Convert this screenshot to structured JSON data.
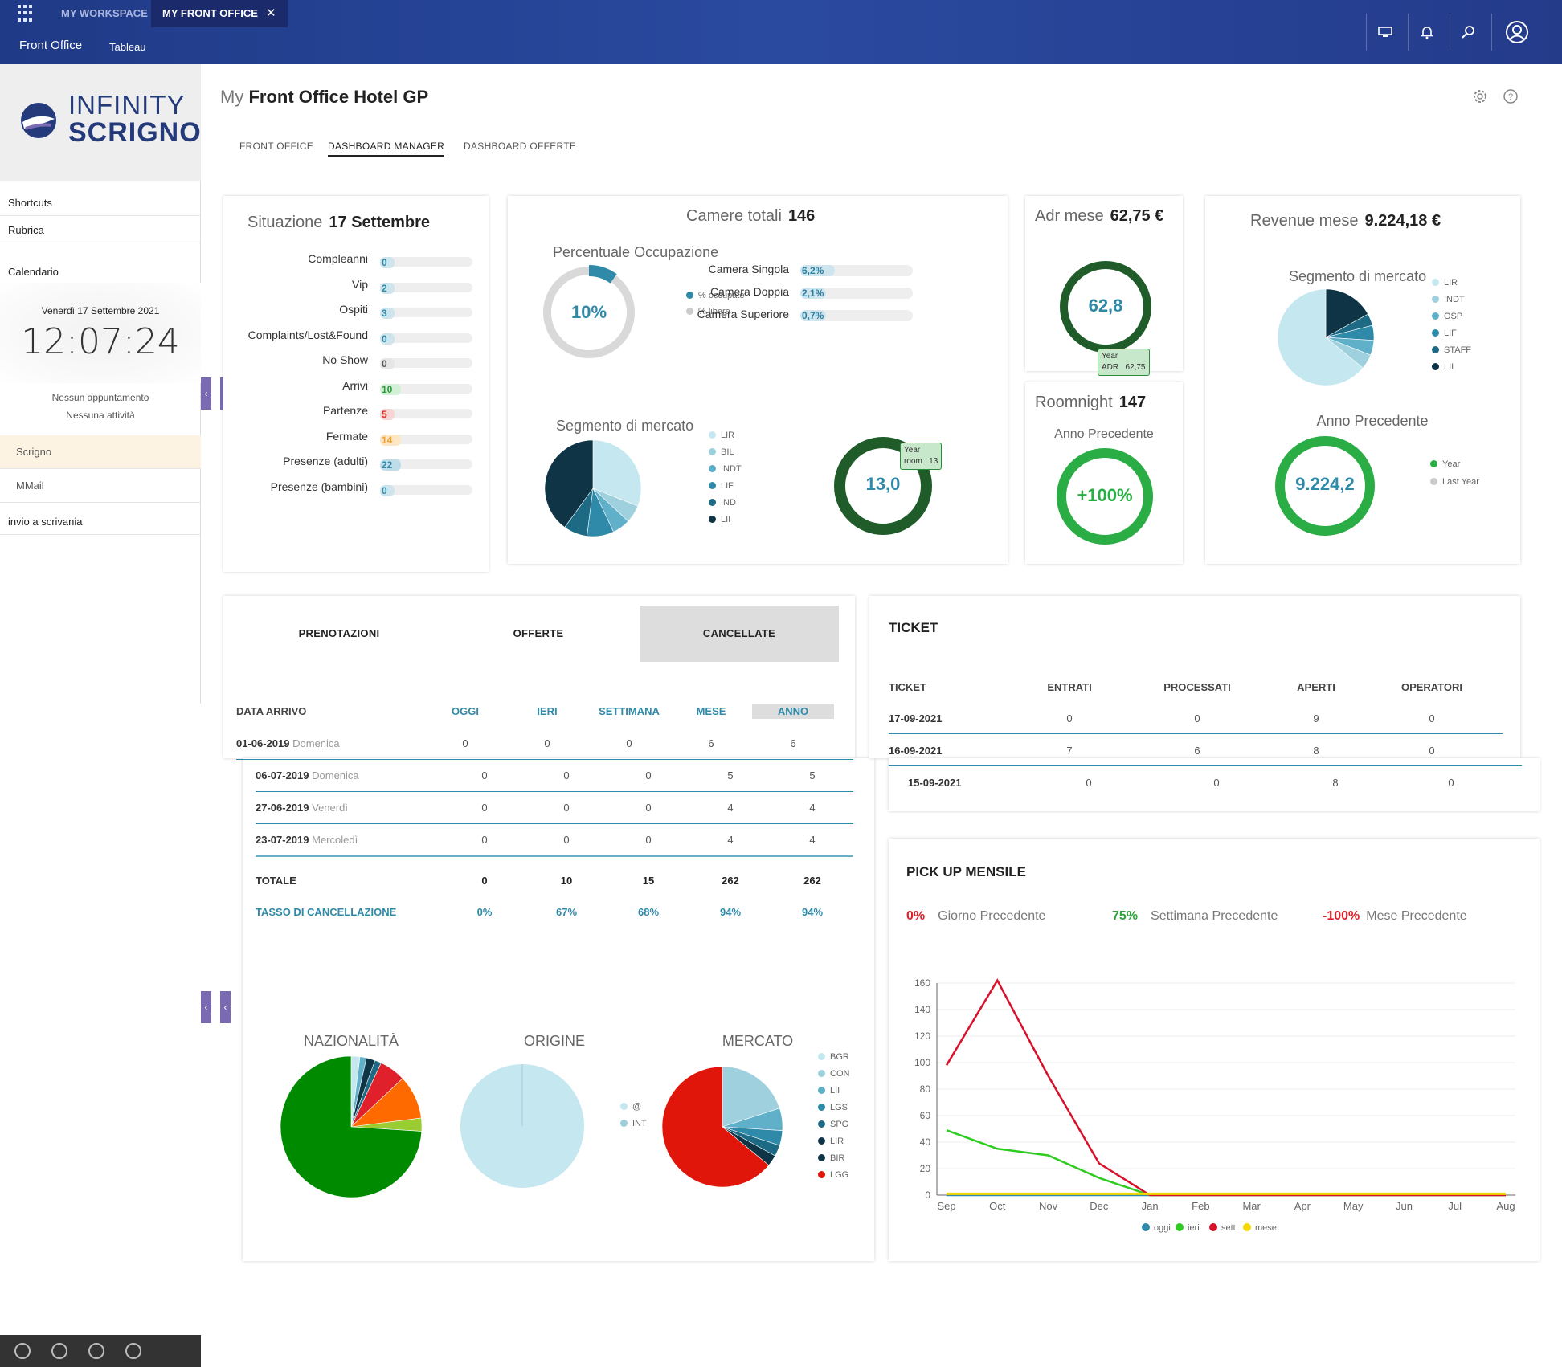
{
  "topbar": {
    "tab_workspace": "MY WORKSPACE",
    "tab_frontoffice": "MY FRONT OFFICE",
    "close": "✕",
    "subnav": [
      "Front Office",
      "Tableau"
    ]
  },
  "sidebar": {
    "logo_line1": "INFINITY",
    "logo_line2": "SCRIGNO",
    "shortcuts": "Shortcuts",
    "rubrica": "Rubrica",
    "calendario": "Calendario",
    "date": "Venerdì 17 Settembre 2021",
    "time": "12:07:24",
    "no_appt": "Nessun appuntamento",
    "no_activity": "Nessuna attività",
    "scrigno": "Scrigno",
    "mmail": "MMail",
    "invio": "invio a scrivania"
  },
  "page": {
    "title_prefix": "My",
    "title": "Front Office Hotel GP",
    "tabs": [
      "FRONT OFFICE",
      "DASHBOARD MANAGER",
      "DASHBOARD OFFERTE"
    ]
  },
  "situazione": {
    "title": "Situazione",
    "date": "17 Settembre",
    "rows": [
      {
        "label": "Compleanni",
        "value": "0",
        "color": "#2e8aa8",
        "bg": "#cfe5ee"
      },
      {
        "label": "Vip",
        "value": "2",
        "color": "#2e8aa8",
        "bg": "#cfe5ee"
      },
      {
        "label": "Ospiti",
        "value": "3",
        "color": "#2e8aa8",
        "bg": "#cfe5ee"
      },
      {
        "label": "Complaints/Lost&Found",
        "value": "0",
        "color": "#2e8aa8",
        "bg": "#cfe5ee"
      },
      {
        "label": "No Show",
        "value": "0",
        "color": "#555",
        "bg": "#e6e6e6"
      },
      {
        "label": "Arrivi",
        "value": "10",
        "color": "#2a9a3a",
        "bg": "#d3f0d6"
      },
      {
        "label": "Partenze",
        "value": "5",
        "color": "#d9302a",
        "bg": "#f7d5d4"
      },
      {
        "label": "Fermate",
        "value": "14",
        "color": "#f0a030",
        "bg": "#fbe6c6"
      },
      {
        "label": "Presenze (adulti)",
        "value": "22",
        "color": "#2e8aa8",
        "bg": "#bfdde8"
      },
      {
        "label": "Presenze (bambini)",
        "value": "0",
        "color": "#2e8aa8",
        "bg": "#cfe5ee"
      }
    ]
  },
  "camere": {
    "title": "Camere totali",
    "total": "146",
    "occ_title": "Percentuale Occupazione",
    "occ_value": "10%",
    "occ_fraction": 0.1,
    "legend": [
      "% occupate",
      "% libere"
    ],
    "rooms": [
      {
        "label": "Camera Singola",
        "value": "6,2%",
        "fraction": 0.062
      },
      {
        "label": "Camera Doppia",
        "value": "2,1%",
        "fraction": 0.021
      },
      {
        "label": "Camera Superiore",
        "value": "0,7%",
        "fraction": 0.007
      }
    ],
    "seg_title": "Segmento di mercato",
    "seg_legend": [
      "LIR",
      "BIL",
      "INDT",
      "LIF",
      "IND",
      "LII"
    ],
    "ring_value": "13,0",
    "ring_tooltip": [
      "Year",
      "room",
      "13"
    ]
  },
  "adr": {
    "title": "Adr mese",
    "value": "62,75 €",
    "ring": "62,8",
    "tooltip": [
      "Year",
      "ADR",
      "62,75"
    ]
  },
  "roomnight": {
    "title": "Roomnight",
    "value": "147",
    "sub": "Anno Precedente",
    "ring": "+100%"
  },
  "revenue": {
    "title": "Revenue mese",
    "value": "9.224,18 €",
    "seg_title": "Segmento di mercato",
    "seg_legend": [
      "LIR",
      "INDT",
      "OSP",
      "LIF",
      "STAFF",
      "LII"
    ],
    "sub": "Anno Precedente",
    "ring": "9.224,2",
    "legend": [
      "Year",
      "Last Year"
    ]
  },
  "prenot": {
    "tabs": [
      "PRENOTAZIONI",
      "OFFERTE",
      "CANCELLATE"
    ],
    "headers": [
      "DATA ARRIVO",
      "OGGI",
      "IERI",
      "SETTIMANA",
      "MESE",
      "ANNO"
    ],
    "rows": [
      {
        "date": "01-06-2019",
        "day": "Domenica",
        "vals": [
          "0",
          "0",
          "0",
          "6",
          "6"
        ]
      },
      {
        "date": "06-07-2019",
        "day": "Domenica",
        "vals": [
          "0",
          "0",
          "0",
          "5",
          "5"
        ]
      },
      {
        "date": "27-06-2019",
        "day": "Venerdì",
        "vals": [
          "0",
          "0",
          "0",
          "4",
          "4"
        ]
      },
      {
        "date": "23-07-2019",
        "day": "Mercoledì",
        "vals": [
          "0",
          "0",
          "0",
          "4",
          "4"
        ]
      }
    ],
    "total_label": "TOTALE",
    "total": [
      "0",
      "10",
      "15",
      "262",
      "262"
    ],
    "rate_label": "TASSO DI CANCELLAZIONE",
    "rate": [
      "0%",
      "67%",
      "68%",
      "94%",
      "94%"
    ],
    "pie_titles": [
      "NAZIONALITÀ",
      "ORIGINE",
      "MERCATO"
    ],
    "origine_legend": [
      "@",
      "INT"
    ],
    "mercato_legend": [
      "BGR",
      "CON",
      "LII",
      "LGS",
      "SPG",
      "LIR",
      "BIR",
      "LGG"
    ]
  },
  "ticket": {
    "title": "TICKET",
    "headers": [
      "TICKET",
      "ENTRATI",
      "PROCESSATI",
      "APERTI",
      "OPERATORI"
    ],
    "rows": [
      [
        "17-09-2021",
        "0",
        "0",
        "9",
        "0"
      ],
      [
        "16-09-2021",
        "7",
        "6",
        "8",
        "0"
      ],
      [
        "15-09-2021",
        "0",
        "0",
        "8",
        "0"
      ]
    ]
  },
  "pickup": {
    "title": "PICK UP MENSILE",
    "stats": [
      {
        "pct": "0%",
        "label": "Giorno Precedente",
        "color": "#e0202a"
      },
      {
        "pct": "75%",
        "label": "Settimana Precedente",
        "color": "#2aa83a"
      },
      {
        "pct": "-100%",
        "label": "Mese Precedente",
        "color": "#e0202a"
      }
    ]
  },
  "chart_data": {
    "type": "line",
    "x": [
      "Sep",
      "Oct",
      "Nov",
      "Dec",
      "Jan",
      "Feb",
      "Mar",
      "Apr",
      "May",
      "Jun",
      "Jul",
      "Aug"
    ],
    "ylim": [
      0,
      160
    ],
    "yticks": [
      0,
      20,
      40,
      60,
      80,
      100,
      120,
      140,
      160
    ],
    "series": [
      {
        "name": "oggi",
        "color": "#2e8aa8",
        "values": [
          0,
          0,
          0,
          0,
          0,
          0,
          0,
          0,
          0,
          0,
          0,
          0
        ]
      },
      {
        "name": "ieri",
        "color": "#2ecc20",
        "values": [
          49,
          35,
          30,
          13,
          0,
          0,
          0,
          0,
          0,
          0,
          0,
          0
        ]
      },
      {
        "name": "sett",
        "color": "#d9102a",
        "values": [
          98,
          162,
          90,
          24,
          0,
          0,
          0,
          0,
          0,
          0,
          0,
          0
        ]
      },
      {
        "name": "mese",
        "color": "#f5d800",
        "values": [
          1,
          1,
          1,
          1,
          1,
          1,
          1,
          1,
          1,
          1,
          1,
          1
        ]
      }
    ]
  },
  "colors": {
    "accent": "#2e8aa8",
    "dark": "#0e3445",
    "green": "#1f5c2a",
    "lightgreen": "#2aad44"
  }
}
